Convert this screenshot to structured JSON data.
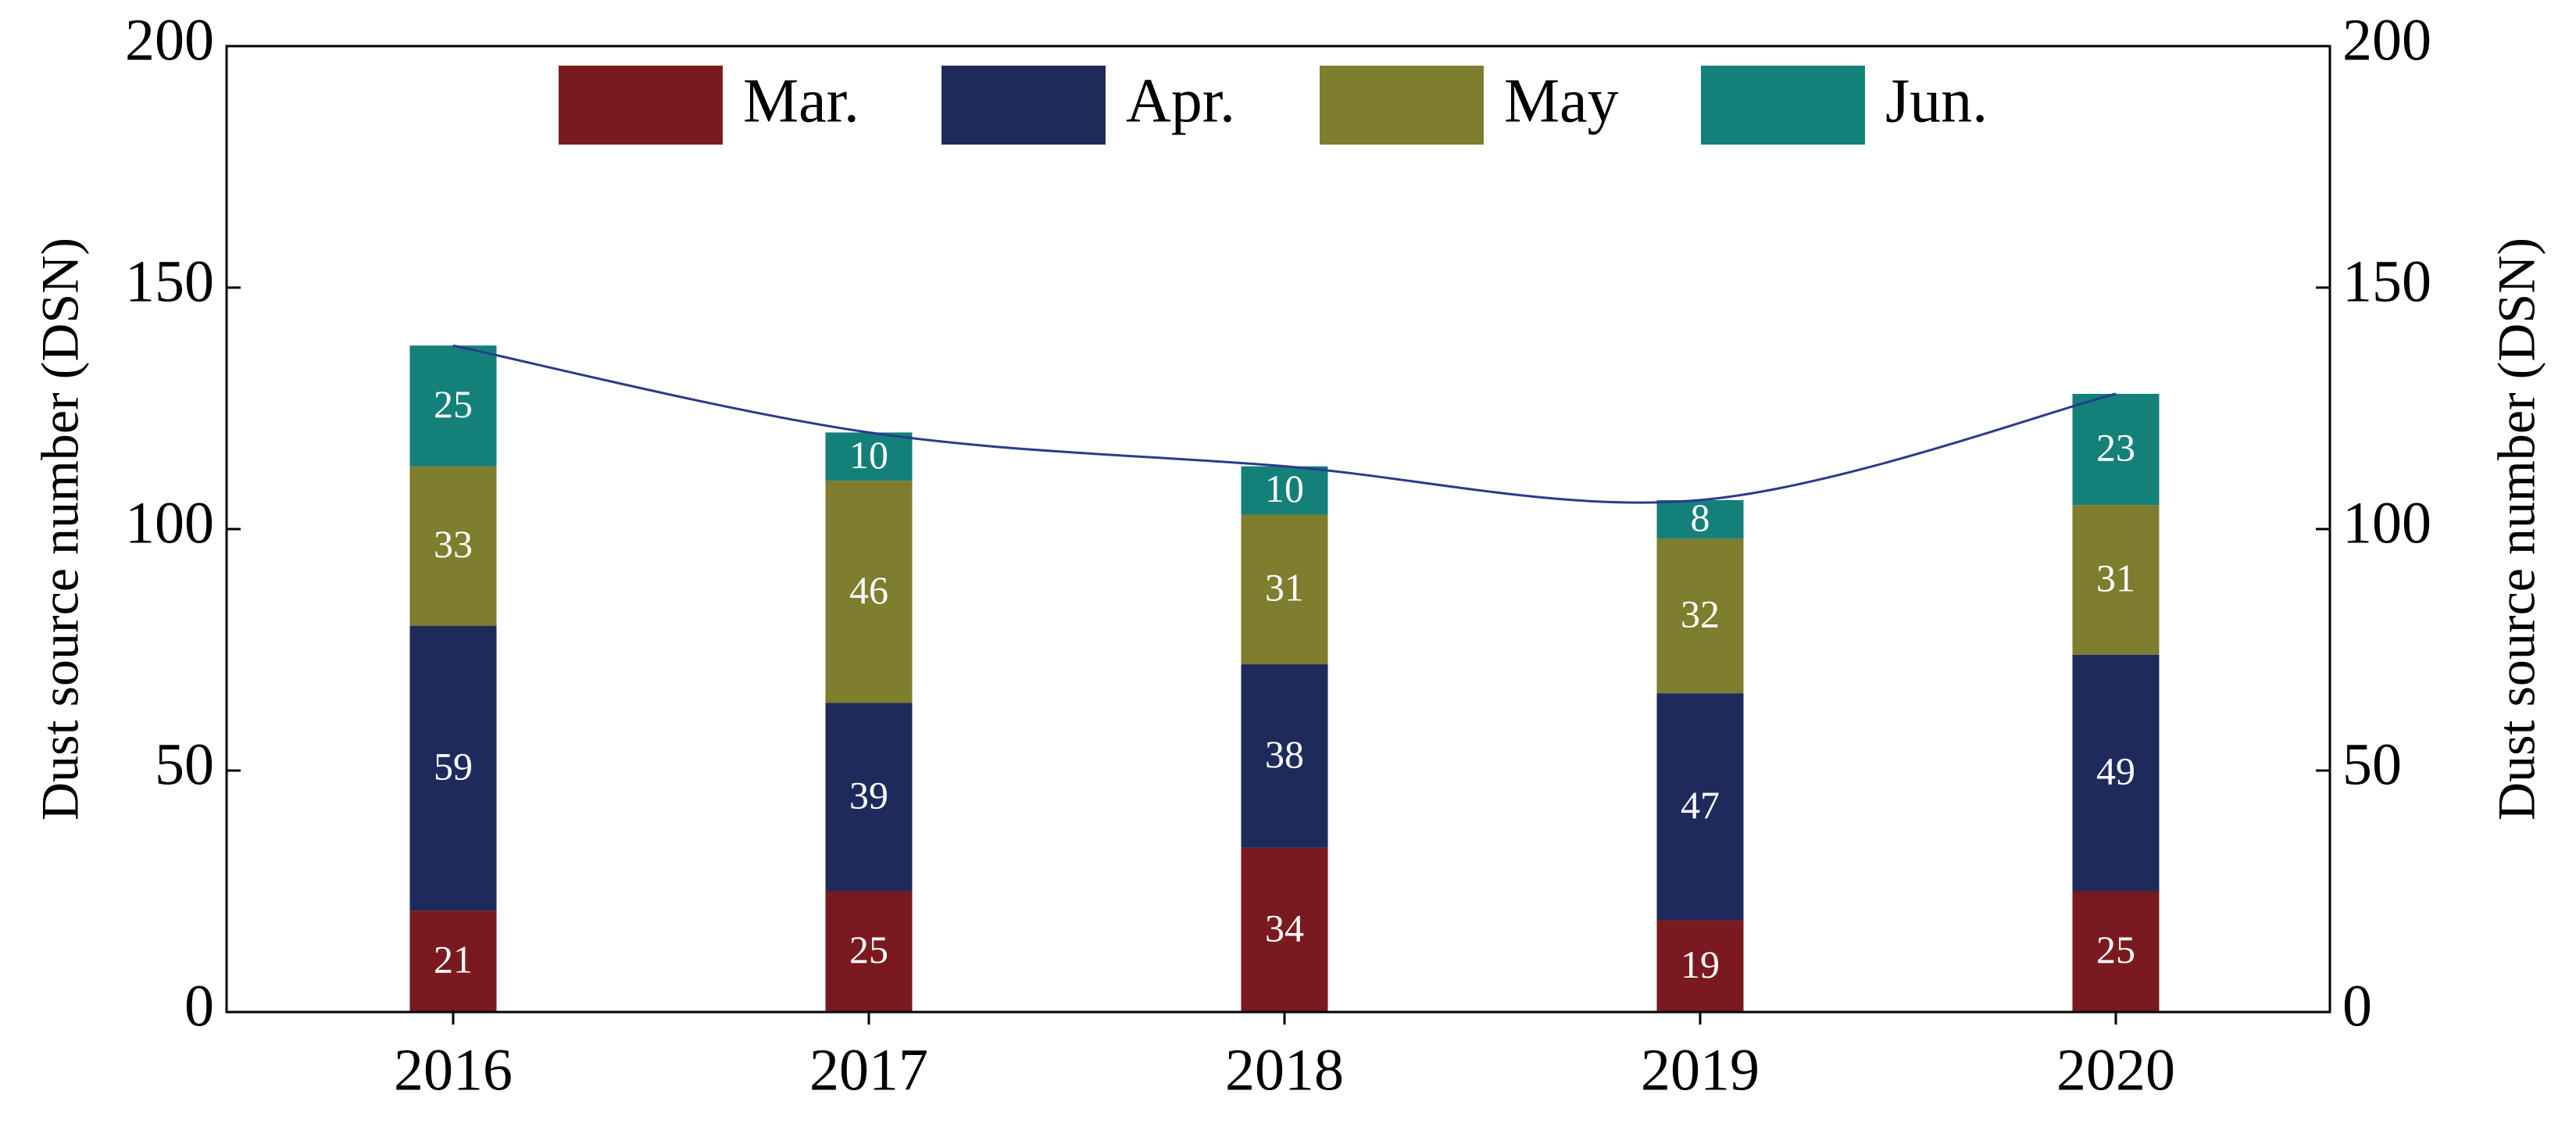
{
  "chart_data": {
    "type": "stacked-bar",
    "categories": [
      "2016",
      "2017",
      "2018",
      "2019",
      "2020"
    ],
    "series": [
      {
        "name": "Mar.",
        "color": "#7a1a1e",
        "values": [
          21,
          25,
          34,
          19,
          25
        ]
      },
      {
        "name": "Apr.",
        "color": "#1f2a5c",
        "values": [
          59,
          39,
          38,
          47,
          49
        ]
      },
      {
        "name": "May",
        "color": "#7f7d2e",
        "values": [
          33,
          46,
          31,
          32,
          31
        ]
      },
      {
        "name": "Jun.",
        "color": "#13807a",
        "values": [
          25,
          10,
          10,
          8,
          23
        ]
      }
    ],
    "line": {
      "color": "#2b3a8c",
      "axis": "y2",
      "values": [
        138,
        120,
        113,
        106,
        128
      ]
    },
    "ylabel": "Dust source number (DSN)",
    "y2label": "Dust source number (DSN)",
    "ylim": [
      0,
      200
    ],
    "yticks": [
      0,
      50,
      100,
      150,
      200
    ],
    "y2lim": [
      0,
      200
    ],
    "y2ticks": [
      0,
      50,
      100,
      150,
      200
    ],
    "legend": "top"
  }
}
